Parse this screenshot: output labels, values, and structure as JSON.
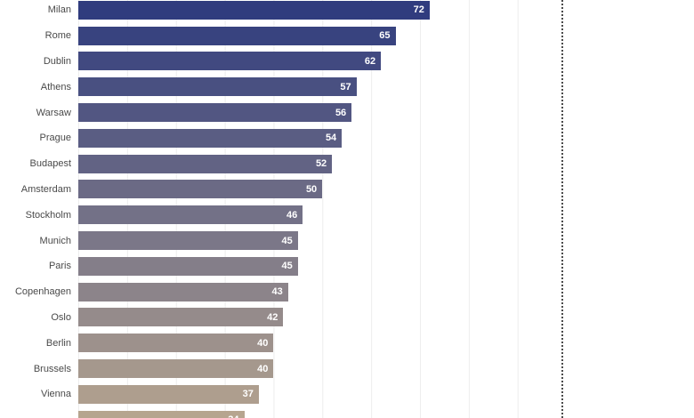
{
  "chart_data": {
    "type": "bar",
    "orientation": "horizontal",
    "title": "",
    "xlabel": "",
    "ylabel": "",
    "xlim": [
      0,
      99
    ],
    "grid": true,
    "gridline_interval": 10,
    "reference_line_x": 99,
    "categories": [
      "Milan",
      "Rome",
      "Dublin",
      "Athens",
      "Warsaw",
      "Prague",
      "Budapest",
      "Amsterdam",
      "Stockholm",
      "Munich",
      "Paris",
      "Copenhagen",
      "Oslo",
      "Berlin",
      "Brussels",
      "Vienna",
      ""
    ],
    "values": [
      72,
      65,
      62,
      57,
      56,
      54,
      52,
      50,
      46,
      45,
      45,
      43,
      42,
      40,
      40,
      37,
      34
    ],
    "bar_colors": [
      "#303c7e",
      "#38437f",
      "#414980",
      "#495081",
      "#525682",
      "#5a5d83",
      "#626384",
      "#6b6a85",
      "#737187",
      "#7b7788",
      "#847e89",
      "#8c848a",
      "#958b8b",
      "#9d918c",
      "#a5988d",
      "#ae9e8e",
      "#b6a58f"
    ],
    "value_label_color": "#ffffff",
    "category_label_color": "#4a4a4a",
    "notes": {
      "top_row_clipped": "true",
      "bottom_row_clipped": "true"
    }
  }
}
